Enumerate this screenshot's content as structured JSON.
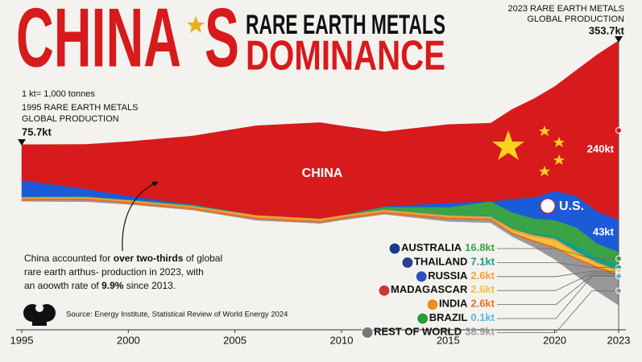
{
  "chart_data": {
    "type": "stream",
    "title_main": "CHINA",
    "title_end": "S",
    "title_top": "RARE EARTH METALS",
    "title_bottom": "DOMINANCE",
    "unit_note": "1 kt= 1,000 tonnes",
    "start_label": {
      "lines": [
        "1995 RARE EARTH METALS",
        "GLOBAL PRODUCTION"
      ],
      "value_label": "75.7kt"
    },
    "end_label": {
      "lines": [
        "2023 RARE EARTH METALS",
        "GLOBAL PRODUCTION"
      ],
      "value_label": "353.7kt"
    },
    "annotation": [
      [
        "China accounted for ",
        "over two-thirds",
        " of global"
      ],
      [
        "rare earth arthus- production in 2023, with"
      ],
      [
        "an aoowth rate of ",
        "9.9%",
        " since 2013."
      ]
    ],
    "source": "Source: Energy Institute, Statistical Review of World Energy 2024",
    "x": [
      1995,
      1998,
      2000,
      2003,
      2006,
      2009,
      2010,
      2012,
      2015,
      2017,
      2018,
      2019,
      2020,
      2021,
      2022,
      2023
    ],
    "xlim": [
      1995,
      2023
    ],
    "xticks": [
      1995,
      2000,
      2005,
      2010,
      2015,
      2020,
      2023
    ],
    "series": [
      {
        "name": "CHINA",
        "color": "#d71a1c",
        "values": [
          48,
          60,
          73,
          92,
          120,
          129,
          120,
          100,
          105,
          105,
          120,
          132,
          140,
          168,
          210,
          240
        ],
        "value_labels": [
          null,
          null,
          null,
          null,
          null,
          null,
          null,
          null,
          null,
          null,
          null,
          null,
          null,
          null,
          null,
          "240kt"
        ]
      },
      {
        "name": "U.S.",
        "color": "#1c5bd8",
        "values": [
          22.2,
          10,
          5,
          0,
          0,
          0,
          0,
          0.8,
          5.9,
          0,
          18,
          28,
          39,
          42,
          43,
          43
        ],
        "value_labels": [
          null,
          null,
          null,
          null,
          null,
          null,
          null,
          null,
          null,
          null,
          null,
          null,
          null,
          null,
          null,
          "43kt"
        ]
      },
      {
        "name": "AUSTRALIA",
        "color": "#3aa346",
        "values": [
          0,
          0,
          0,
          0,
          0,
          0,
          0,
          3,
          10,
          19,
          21,
          20,
          21,
          24,
          18,
          16.8
        ],
        "value_labels": [
          null,
          null,
          null,
          null,
          null,
          null,
          null,
          null,
          null,
          null,
          null,
          null,
          null,
          null,
          null,
          "16.8kt"
        ]
      },
      {
        "name": "THAILAND",
        "color": "#1a9c86",
        "values": [
          0.4,
          0.6,
          0.6,
          2,
          0,
          0,
          0,
          0.8,
          0.8,
          1.3,
          1,
          2,
          3.6,
          8,
          7.1,
          7.1
        ],
        "value_labels": [
          null,
          null,
          null,
          null,
          null,
          null,
          null,
          null,
          null,
          null,
          null,
          null,
          null,
          null,
          null,
          "7.1kt"
        ]
      },
      {
        "name": "RUSSIA",
        "color": "#f0a13a",
        "values": [
          2,
          2,
          2,
          2,
          3,
          2.5,
          2.5,
          2.4,
          2.8,
          2.6,
          2.7,
          2.7,
          2.7,
          2.6,
          2.6,
          2.6
        ],
        "value_labels": [
          null,
          null,
          null,
          null,
          null,
          null,
          null,
          null,
          null,
          null,
          null,
          null,
          null,
          null,
          null,
          "2.6kt"
        ]
      },
      {
        "name": "MADAGASCAR",
        "color": "#f2c23c",
        "values": [
          0,
          0,
          0,
          0,
          0,
          0,
          0,
          0,
          0,
          0,
          2,
          4,
          8,
          6,
          2.6,
          2.6
        ],
        "value_labels": [
          null,
          null,
          null,
          null,
          null,
          null,
          null,
          null,
          null,
          null,
          null,
          null,
          null,
          null,
          null,
          "2.6kt"
        ]
      },
      {
        "name": "INDIA",
        "color": "#e8702a",
        "values": [
          2.8,
          2.7,
          2.7,
          2.7,
          2.7,
          2.7,
          2.8,
          2.9,
          3,
          3,
          3,
          3,
          3,
          2.9,
          2.9,
          2.6
        ],
        "value_labels": [
          null,
          null,
          null,
          null,
          null,
          null,
          null,
          null,
          null,
          null,
          null,
          null,
          null,
          null,
          null,
          "2.6kt"
        ]
      },
      {
        "name": "BRAZIL",
        "color": "#5db6e4",
        "values": [
          0.3,
          1,
          0.4,
          0,
          0.5,
          0.5,
          0.5,
          0.1,
          0.9,
          1.7,
          1.1,
          0.7,
          0.6,
          0.5,
          0.1,
          0.1
        ],
        "value_labels": [
          null,
          null,
          null,
          null,
          null,
          null,
          null,
          null,
          null,
          null,
          null,
          null,
          null,
          null,
          null,
          "0.1kt"
        ]
      },
      {
        "name": "REST OF WORLD",
        "color": "#989898",
        "values": [
          0,
          0,
          0,
          0,
          0,
          0,
          0,
          0,
          1,
          0.5,
          1,
          5,
          13,
          20,
          30,
          38.9
        ],
        "value_labels": [
          null,
          null,
          null,
          null,
          null,
          null,
          null,
          null,
          null,
          null,
          null,
          null,
          null,
          null,
          null,
          "38.9kt"
        ]
      }
    ]
  }
}
